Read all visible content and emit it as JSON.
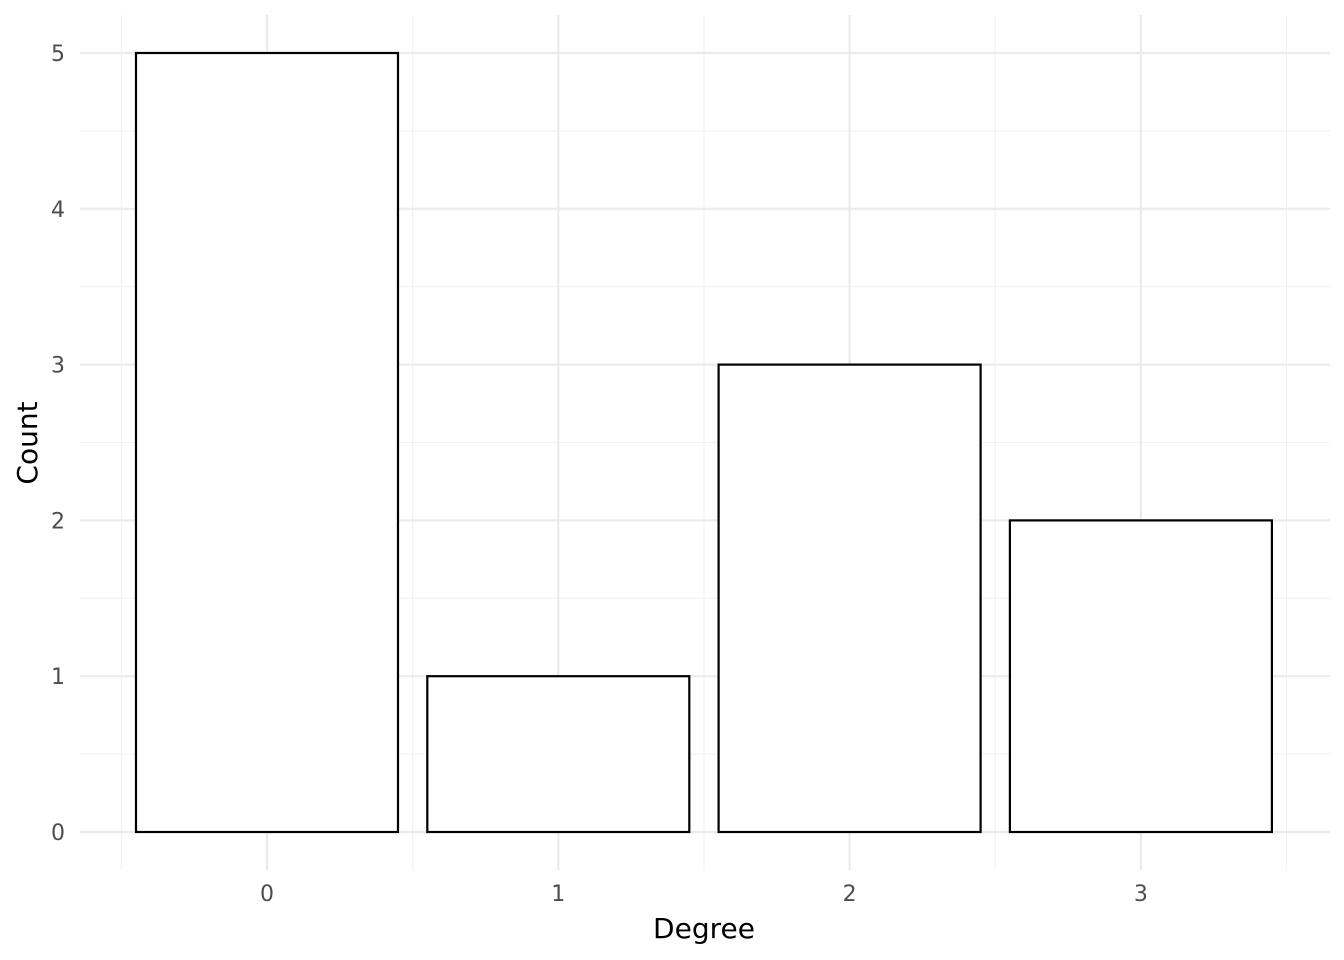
{
  "chart_data": {
    "type": "bar",
    "categories": [
      "0",
      "1",
      "2",
      "3"
    ],
    "values": [
      5,
      1,
      3,
      2
    ],
    "title": "",
    "xlabel": "Degree",
    "ylabel": "Count",
    "ylim": [
      0,
      5
    ],
    "y_ticks": [
      "0",
      "1",
      "2",
      "3",
      "4",
      "5"
    ],
    "grid": true,
    "legend": "none",
    "colors": {
      "bar_fill": "#ffffff",
      "bar_outline": "#000000",
      "grid_major": "#ebebeb",
      "grid_minor": "#f2f2f2",
      "tick_text": "#4d4d4d"
    }
  }
}
